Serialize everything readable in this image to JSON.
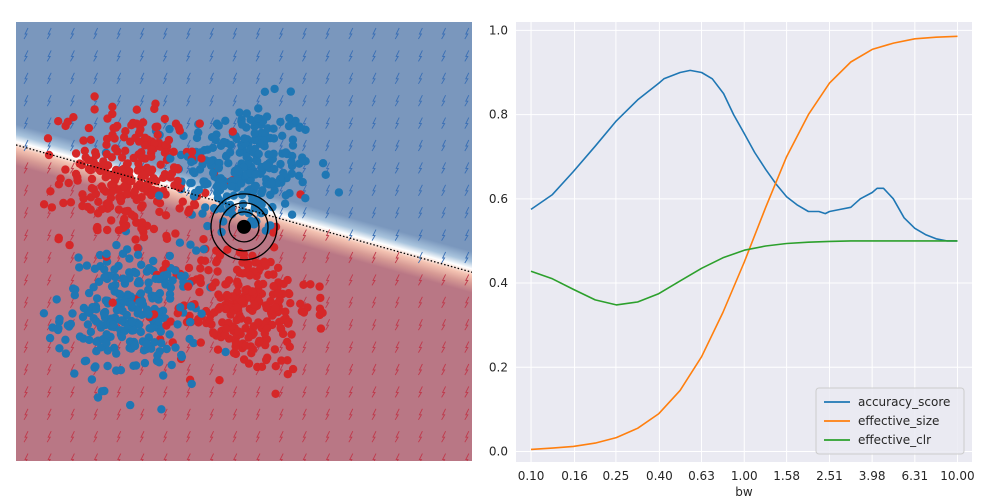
{
  "chart_data": [
    {
      "type": "scatter",
      "title": "",
      "xlabel": "",
      "ylabel": "",
      "xlim": [
        -3,
        3
      ],
      "ylim": [
        -3,
        3
      ],
      "grid": false,
      "axes_visible": false,
      "background_regions": [
        {
          "name": "upper",
          "color": "#7a97bd"
        },
        {
          "name": "lower",
          "color": "#b97785"
        }
      ],
      "decision_boundary": {
        "style": "dotted",
        "color": "#000000",
        "slope": -0.29,
        "intercept": 0.45
      },
      "highlight_point": {
        "x": 0.0,
        "y": 0.2,
        "color": "#000000",
        "rings": 3
      },
      "colors": {
        "class_0": "#1f77b4",
        "class_1": "#d62728"
      },
      "clusters": [
        {
          "class": "class_0",
          "cx": 0.0,
          "cy": 1.0,
          "sx": 0.45,
          "sy": 0.45,
          "n": 260
        },
        {
          "class": "class_0",
          "cx": -1.5,
          "cy": -1.0,
          "sx": 0.45,
          "sy": 0.45,
          "n": 260
        },
        {
          "class": "class_1",
          "cx": -1.5,
          "cy": 0.9,
          "sx": 0.45,
          "sy": 0.45,
          "n": 260
        },
        {
          "class": "class_1",
          "cx": 0.0,
          "cy": -0.9,
          "sx": 0.45,
          "sy": 0.45,
          "n": 260
        }
      ]
    },
    {
      "type": "line",
      "title": "",
      "xlabel": "bw",
      "ylabel": "",
      "x_scale": "log",
      "xlim": [
        0.085,
        11.7
      ],
      "ylim": [
        -0.025,
        1.02
      ],
      "grid": true,
      "x_tick_labels": [
        "0.10",
        "0.16",
        "0.25",
        "0.40",
        "0.63",
        "1.00",
        "1.58",
        "2.51",
        "3.98",
        "6.31",
        "10.00"
      ],
      "y_tick_labels": [
        "0.0",
        "0.2",
        "0.4",
        "0.6",
        "0.8",
        "1.0"
      ],
      "legend": {
        "placement": "lower-right"
      },
      "series": [
        {
          "name": "accuracy_score",
          "color": "#1f77b4",
          "x": [
            0.1,
            0.126,
            0.158,
            0.2,
            0.251,
            0.316,
            0.398,
            0.42,
            0.5,
            0.558,
            0.631,
            0.708,
            0.8,
            0.891,
            1.0,
            1.12,
            1.26,
            1.41,
            1.58,
            1.78,
            2.0,
            2.24,
            2.4,
            2.51,
            2.82,
            3.16,
            3.5,
            3.98,
            4.2,
            4.5,
            5.0,
            5.62,
            6.31,
            7.08,
            7.94,
            8.91,
            10.0
          ],
          "y": [
            0.575,
            0.61,
            0.665,
            0.725,
            0.785,
            0.835,
            0.875,
            0.885,
            0.9,
            0.905,
            0.9,
            0.885,
            0.85,
            0.8,
            0.755,
            0.71,
            0.67,
            0.635,
            0.605,
            0.585,
            0.57,
            0.57,
            0.565,
            0.57,
            0.575,
            0.58,
            0.6,
            0.615,
            0.625,
            0.625,
            0.6,
            0.555,
            0.53,
            0.515,
            0.505,
            0.5,
            0.5
          ]
        },
        {
          "name": "effective_size",
          "color": "#ff7f0e",
          "x": [
            0.1,
            0.126,
            0.158,
            0.2,
            0.251,
            0.316,
            0.398,
            0.5,
            0.631,
            0.794,
            1.0,
            1.26,
            1.58,
            2.0,
            2.51,
            3.16,
            3.98,
            5.01,
            6.31,
            7.94,
            10.0
          ],
          "y": [
            0.005,
            0.008,
            0.012,
            0.02,
            0.033,
            0.055,
            0.09,
            0.145,
            0.225,
            0.33,
            0.45,
            0.58,
            0.7,
            0.8,
            0.875,
            0.925,
            0.955,
            0.97,
            0.98,
            0.984,
            0.986
          ]
        },
        {
          "name": "effective_clr",
          "color": "#2ca02c",
          "x": [
            0.1,
            0.126,
            0.158,
            0.2,
            0.251,
            0.316,
            0.398,
            0.5,
            0.631,
            0.794,
            1.0,
            1.26,
            1.58,
            2.0,
            2.51,
            3.16,
            3.98,
            5.01,
            6.31,
            7.94,
            10.0
          ],
          "y": [
            0.428,
            0.41,
            0.385,
            0.36,
            0.348,
            0.355,
            0.375,
            0.405,
            0.435,
            0.46,
            0.478,
            0.488,
            0.494,
            0.497,
            0.499,
            0.5,
            0.5,
            0.5,
            0.5,
            0.5,
            0.5
          ]
        }
      ]
    }
  ]
}
